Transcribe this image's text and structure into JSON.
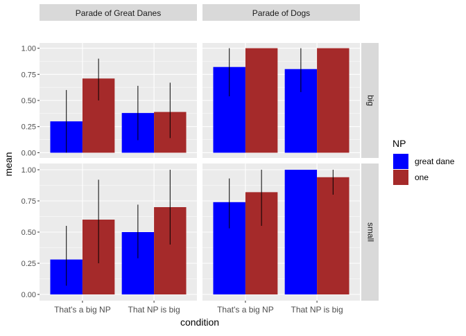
{
  "chart_data": {
    "type": "bar",
    "xlabel": "condition",
    "ylabel": "mean",
    "ylim": [
      0,
      1
    ],
    "yticks": [
      "0.00",
      "0.25",
      "0.50",
      "0.75",
      "1.00"
    ],
    "categories": [
      "That's a big NP",
      "That NP is big"
    ],
    "legend": {
      "title": "NP",
      "placement": "right",
      "entries": [
        {
          "label": "great dane",
          "color": "#0000ff"
        },
        {
          "label": "one",
          "color": "#a52a2a"
        }
      ]
    },
    "col_facets": [
      "Parade of Great Danes",
      "Parade of Dogs"
    ],
    "row_facets": [
      "big",
      "small"
    ],
    "grid": true,
    "panels": [
      {
        "col": 0,
        "row": 0,
        "series": [
          {
            "name": "great dane",
            "values": [
              0.3,
              0.38
            ],
            "err_low": [
              0.0,
              0.12
            ],
            "err_high": [
              0.6,
              0.64
            ]
          },
          {
            "name": "one",
            "values": [
              0.71,
              0.39
            ],
            "err_low": [
              0.5,
              0.14
            ],
            "err_high": [
              0.9,
              0.67
            ]
          }
        ]
      },
      {
        "col": 1,
        "row": 0,
        "series": [
          {
            "name": "great dane",
            "values": [
              0.82,
              0.8
            ],
            "err_low": [
              0.54,
              0.58
            ],
            "err_high": [
              1.0,
              1.0
            ]
          },
          {
            "name": "one",
            "values": [
              1.0,
              1.0
            ],
            "err_low": [
              1.0,
              1.0
            ],
            "err_high": [
              1.0,
              1.0
            ]
          }
        ]
      },
      {
        "col": 0,
        "row": 1,
        "series": [
          {
            "name": "great dane",
            "values": [
              0.28,
              0.5
            ],
            "err_low": [
              0.07,
              0.29
            ],
            "err_high": [
              0.55,
              0.72
            ]
          },
          {
            "name": "one",
            "values": [
              0.6,
              0.7
            ],
            "err_low": [
              0.25,
              0.4
            ],
            "err_high": [
              0.92,
              1.0
            ]
          }
        ]
      },
      {
        "col": 1,
        "row": 1,
        "series": [
          {
            "name": "great dane",
            "values": [
              0.74,
              1.0
            ],
            "err_low": [
              0.53,
              1.0
            ],
            "err_high": [
              0.93,
              1.0
            ]
          },
          {
            "name": "one",
            "values": [
              0.82,
              0.94
            ],
            "err_low": [
              0.55,
              0.8
            ],
            "err_high": [
              1.0,
              1.0
            ]
          }
        ]
      }
    ]
  }
}
